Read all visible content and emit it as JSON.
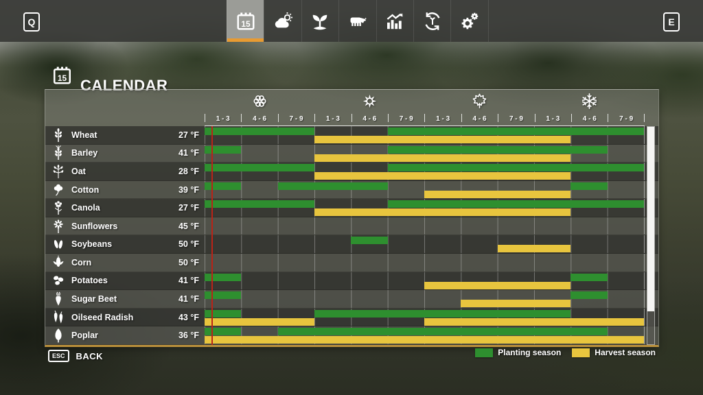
{
  "topbar": {
    "left_key": "Q",
    "right_key": "E",
    "tabs": [
      {
        "id": "calendar",
        "icon": "calendar-icon",
        "active": true
      },
      {
        "id": "weather",
        "icon": "weather-icon",
        "active": false
      },
      {
        "id": "crop-growth",
        "icon": "seedling-icon",
        "active": false
      },
      {
        "id": "animals",
        "icon": "cow-icon",
        "active": false
      },
      {
        "id": "statistics",
        "icon": "bar-chart-icon",
        "active": false
      },
      {
        "id": "crop-rotation",
        "icon": "rotation-icon",
        "active": false
      },
      {
        "id": "settings",
        "icon": "gears-icon",
        "active": false
      }
    ]
  },
  "header": {
    "title": "CALENDAR",
    "icon": "calendar-icon"
  },
  "calendar": {
    "seasons": [
      {
        "name": "spring",
        "icon": "spring-flower-icon",
        "periods": [
          "1 - 3",
          "4 - 6",
          "7 - 9"
        ]
      },
      {
        "name": "summer",
        "icon": "summer-sun-icon",
        "periods": [
          "1 - 3",
          "4 - 6",
          "7 - 9"
        ]
      },
      {
        "name": "autumn",
        "icon": "autumn-leaf-icon",
        "periods": [
          "1 - 3",
          "4 - 6",
          "7 - 9"
        ]
      },
      {
        "name": "winter",
        "icon": "winter-snowflake-icon",
        "periods": [
          "1 - 3",
          "4 - 6",
          "7 - 9"
        ]
      }
    ],
    "columns_total": 12,
    "current_day": {
      "column_position": 0.19
    },
    "colors": {
      "planting": "#2e8f2f",
      "harvest": "#e8c53e",
      "current_day_line": "#ba2317"
    },
    "rows": [
      {
        "crop": "Wheat",
        "temp": "27 °F",
        "icon": "wheat-icon",
        "planting": [
          [
            1,
            3
          ],
          [
            6,
            12
          ]
        ],
        "harvest": [
          [
            4,
            10
          ]
        ]
      },
      {
        "crop": "Barley",
        "temp": "41 °F",
        "icon": "barley-icon",
        "planting": [
          [
            1,
            1
          ],
          [
            6,
            11
          ]
        ],
        "harvest": [
          [
            4,
            10
          ]
        ]
      },
      {
        "crop": "Oat",
        "temp": "28 °F",
        "icon": "oat-icon",
        "planting": [
          [
            1,
            3
          ],
          [
            6,
            12
          ]
        ],
        "harvest": [
          [
            4,
            10
          ]
        ]
      },
      {
        "crop": "Cotton",
        "temp": "39 °F",
        "icon": "cotton-icon",
        "planting": [
          [
            1,
            1
          ],
          [
            3,
            5
          ],
          [
            11,
            11
          ]
        ],
        "harvest": [
          [
            7,
            10
          ]
        ]
      },
      {
        "crop": "Canola",
        "temp": "27 °F",
        "icon": "canola-icon",
        "planting": [
          [
            1,
            3
          ],
          [
            6,
            12
          ]
        ],
        "harvest": [
          [
            4,
            10
          ]
        ]
      },
      {
        "crop": "Sunflowers",
        "temp": "45 °F",
        "icon": "sunflower-icon",
        "planting": [],
        "harvest": []
      },
      {
        "crop": "Soybeans",
        "temp": "50 °F",
        "icon": "soybean-icon",
        "planting": [
          [
            5,
            5
          ]
        ],
        "harvest": [
          [
            9,
            10
          ]
        ]
      },
      {
        "crop": "Corn",
        "temp": "50 °F",
        "icon": "corn-icon",
        "planting": [],
        "harvest": []
      },
      {
        "crop": "Potatoes",
        "temp": "41 °F",
        "icon": "potato-icon",
        "planting": [
          [
            1,
            1
          ],
          [
            11,
            11
          ]
        ],
        "harvest": [
          [
            7,
            10
          ]
        ]
      },
      {
        "crop": "Sugar Beet",
        "temp": "41 °F",
        "icon": "sugar-beet-icon",
        "planting": [
          [
            1,
            1
          ],
          [
            11,
            11
          ]
        ],
        "harvest": [
          [
            8,
            10
          ]
        ]
      },
      {
        "crop": "Oilseed Radish",
        "temp": "43 °F",
        "icon": "oilseed-radish-icon",
        "planting": [
          [
            1,
            1
          ],
          [
            4,
            10
          ]
        ],
        "harvest": [
          [
            1,
            3
          ],
          [
            7,
            12
          ]
        ]
      },
      {
        "crop": "Poplar",
        "temp": "36 °F",
        "icon": "poplar-icon",
        "planting": [
          [
            1,
            1
          ],
          [
            3,
            11
          ]
        ],
        "harvest": [
          [
            1,
            12
          ]
        ]
      }
    ],
    "legend": [
      {
        "label": "Planting season",
        "color": "#2e8f2f"
      },
      {
        "label": "Harvest season",
        "color": "#e8c53e"
      }
    ]
  },
  "footer": {
    "key": "ESC",
    "label": "BACK"
  }
}
